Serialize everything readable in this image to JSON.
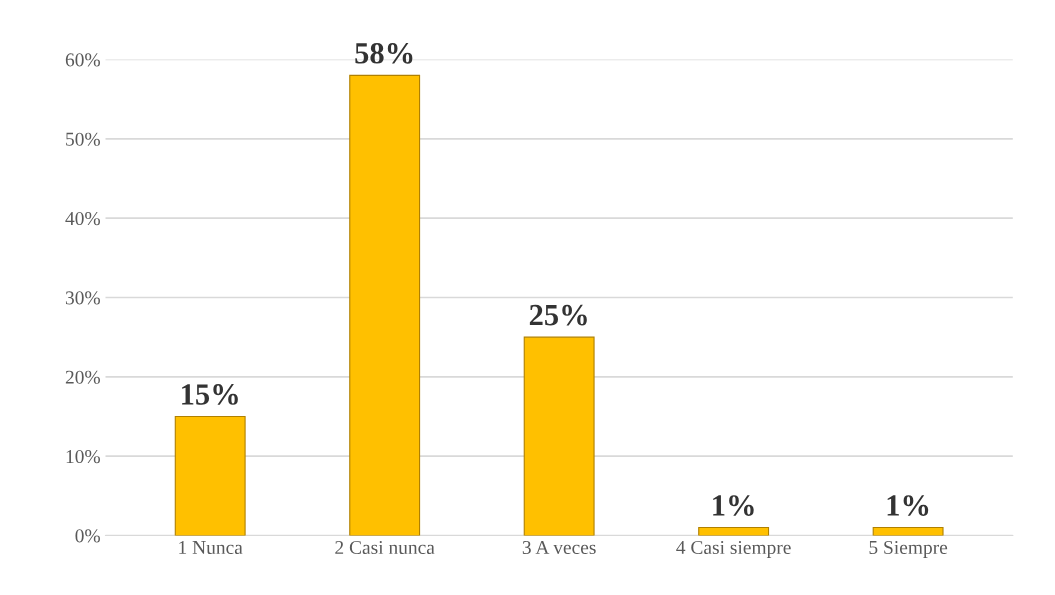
{
  "chart_data": {
    "type": "bar",
    "categories": [
      "1 Nunca",
      "2 Casi nunca",
      "3 A veces",
      "4 Casi siempre",
      "5 Siempre"
    ],
    "values": [
      15,
      58,
      25,
      1,
      1
    ],
    "value_labels": [
      "15%",
      "58%",
      "25%",
      "1%",
      "1%"
    ],
    "color": "#ffc000",
    "ylim": [
      0,
      60
    ],
    "yticks": [
      {
        "value": 0,
        "label": "0%"
      },
      {
        "value": 10,
        "label": "10%"
      },
      {
        "value": 20,
        "label": "20%"
      },
      {
        "value": 30,
        "label": "30%"
      },
      {
        "value": 40,
        "label": "40%"
      },
      {
        "value": 50,
        "label": "50%"
      },
      {
        "value": 60,
        "label": "60%"
      }
    ],
    "grid": "y"
  }
}
